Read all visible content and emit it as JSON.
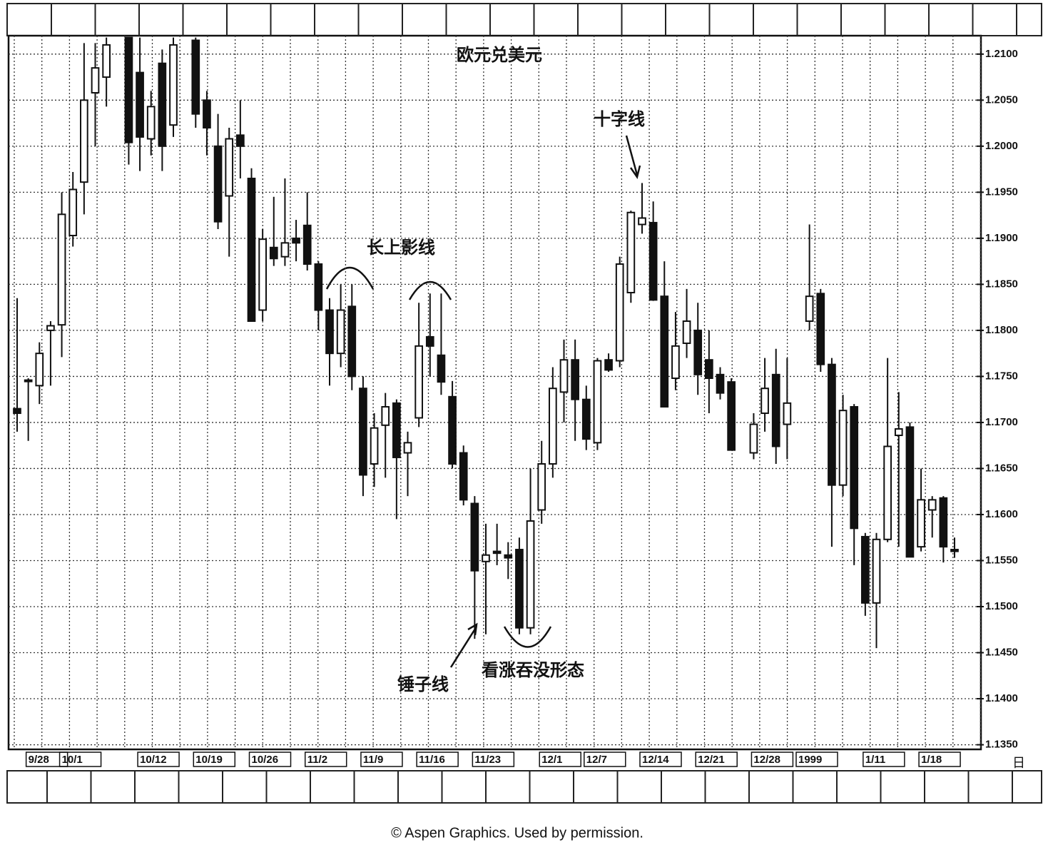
{
  "chart_data": {
    "type": "candlestick",
    "title": "欧元兑美元",
    "categories": [
      null,
      "9/28",
      null,
      null,
      "10/1",
      null,
      null,
      null,
      null,
      null,
      null,
      "10/12",
      null,
      null,
      null,
      null,
      "10/19",
      null,
      null,
      null,
      null,
      "10/26",
      null,
      null,
      null,
      null,
      "11/2",
      null,
      null,
      null,
      null,
      "11/9",
      null,
      null,
      null,
      null,
      "11/16",
      null,
      null,
      null,
      null,
      "11/23",
      null,
      null,
      null,
      null,
      null,
      "12/1",
      null,
      null,
      null,
      "12/7",
      null,
      null,
      null,
      null,
      "12/14",
      null,
      null,
      null,
      null,
      "12/21",
      null,
      null,
      null,
      null,
      "12/28",
      null,
      null,
      null,
      "1999",
      null,
      null,
      null,
      null,
      null,
      "1/11",
      null,
      null,
      null,
      null,
      "1/18",
      null,
      null,
      null
    ],
    "open": [
      1.1715,
      1.1745,
      1.174,
      1.18,
      1.1806,
      1.1903,
      1.1961,
      1.2058,
      1.2075,
      null,
      1.2118,
      1.208,
      1.2008,
      1.209,
      1.2023,
      null,
      1.2115,
      1.205,
      1.2,
      1.1946,
      1.2012,
      1.1965,
      1.1822,
      1.189,
      1.188,
      1.19,
      1.1914,
      1.1872,
      1.1822,
      1.1775,
      1.1826,
      1.1737,
      1.1655,
      1.1697,
      1.1721,
      1.1667,
      1.1705,
      1.1793,
      1.1773,
      1.1728,
      1.1667,
      1.1612,
      1.1549,
      1.156,
      1.1556,
      1.1562,
      1.1477,
      1.1605,
      1.1655,
      1.1733,
      1.1768,
      1.1725,
      1.1678,
      1.1768,
      1.1767,
      1.1841,
      1.1915,
      1.1917,
      1.1837,
      1.1748,
      1.1786,
      1.18,
      1.1768,
      1.1752,
      1.1744,
      null,
      1.1667,
      1.171,
      1.1752,
      1.1698,
      null,
      1.181,
      1.184,
      1.1763,
      1.1632,
      1.1717,
      1.1576,
      1.1504,
      1.1573,
      1.1686,
      1.1695,
      1.1565,
      1.1605,
      1.1618,
      1.1562
    ],
    "high": [
      1.1835,
      1.1748,
      1.1787,
      1.181,
      1.195,
      1.1972,
      1.2112,
      1.2112,
      1.2118,
      null,
      1.2118,
      1.2118,
      1.206,
      1.2105,
      1.2118,
      null,
      1.2118,
      1.206,
      1.2035,
      1.202,
      1.205,
      1.1976,
      1.191,
      1.1945,
      1.1965,
      1.192,
      1.195,
      1.1875,
      1.1835,
      1.185,
      1.185,
      1.175,
      1.171,
      1.1732,
      1.1725,
      1.169,
      1.183,
      1.184,
      1.184,
      1.1745,
      1.1675,
      1.162,
      1.159,
      1.159,
      1.157,
      1.1575,
      1.165,
      1.168,
      1.176,
      1.179,
      1.179,
      1.174,
      1.177,
      1.1775,
      1.188,
      1.193,
      1.196,
      1.194,
      1.1875,
      1.182,
      1.1845,
      1.183,
      1.18,
      1.176,
      1.1748,
      null,
      1.171,
      1.177,
      1.178,
      1.177,
      null,
      1.1915,
      1.1845,
      1.177,
      1.173,
      1.172,
      1.158,
      1.158,
      1.177,
      1.1733,
      1.17,
      1.165,
      1.162,
      1.162,
      1.1575
    ],
    "low": [
      1.169,
      1.168,
      1.172,
      1.174,
      1.1771,
      1.1891,
      1.1926,
      1.2,
      1.2043,
      null,
      1.198,
      1.1973,
      1.199,
      1.1973,
      1.201,
      null,
      1.202,
      1.199,
      1.191,
      1.188,
      1.1965,
      1.181,
      1.181,
      1.187,
      1.187,
      1.1875,
      1.1865,
      1.18,
      1.174,
      1.176,
      1.1735,
      1.162,
      1.163,
      1.164,
      1.1595,
      1.162,
      1.1695,
      1.175,
      1.173,
      1.165,
      1.161,
      1.1465,
      1.147,
      1.1545,
      1.153,
      1.147,
      1.147,
      1.159,
      1.164,
      1.17,
      1.168,
      1.167,
      1.167,
      1.1755,
      1.176,
      1.183,
      1.1905,
      1.1832,
      1.1717,
      1.1735,
      1.177,
      1.173,
      1.171,
      1.1725,
      1.167,
      null,
      1.166,
      1.169,
      1.1655,
      1.166,
      null,
      1.18,
      1.1755,
      1.1565,
      1.162,
      1.1545,
      1.149,
      1.1455,
      1.157,
      1.1565,
      1.1554,
      1.156,
      1.1575,
      1.1548,
      1.1553
    ],
    "close": [
      1.171,
      1.1746,
      1.1775,
      1.1805,
      1.1926,
      1.1953,
      1.205,
      1.2085,
      1.211,
      null,
      1.2004,
      1.201,
      1.2043,
      1.2,
      1.211,
      null,
      1.2035,
      1.202,
      1.1918,
      1.2008,
      1.2,
      1.181,
      1.1899,
      1.1878,
      1.1895,
      1.1895,
      1.1872,
      1.1822,
      1.1775,
      1.1822,
      1.175,
      1.1643,
      1.1694,
      1.1717,
      1.1662,
      1.1678,
      1.1783,
      1.1783,
      1.1744,
      1.1655,
      1.1616,
      1.1539,
      1.1556,
      1.1558,
      1.1553,
      1.1477,
      1.1593,
      1.1655,
      1.1737,
      1.1768,
      1.1725,
      1.1682,
      1.1767,
      1.1757,
      1.1872,
      1.1928,
      1.1922,
      1.1833,
      1.1717,
      1.1783,
      1.181,
      1.1752,
      1.1748,
      1.1732,
      1.167,
      null,
      1.1698,
      1.1737,
      1.1674,
      1.1721,
      null,
      1.1837,
      1.1763,
      1.1632,
      1.1713,
      1.1585,
      1.1504,
      1.1573,
      1.1674,
      1.1693,
      1.1554,
      1.1616,
      1.1616,
      1.1565,
      1.156
    ],
    "up_color": "#ffffff",
    "down_color": "#111111",
    "ylim": [
      1.1345,
      1.212
    ],
    "yticks": [
      {
        "value": 1.135,
        "label": "1.1350"
      },
      {
        "value": 1.14,
        "label": "1.1400"
      },
      {
        "value": 1.145,
        "label": "1.1450"
      },
      {
        "value": 1.15,
        "label": "1.1500"
      },
      {
        "value": 1.155,
        "label": "1.1550"
      },
      {
        "value": 1.16,
        "label": "1.1600"
      },
      {
        "value": 1.165,
        "label": "1.1650"
      },
      {
        "value": 1.17,
        "label": "1.1700"
      },
      {
        "value": 1.175,
        "label": "1.1750"
      },
      {
        "value": 1.18,
        "label": "1.1800"
      },
      {
        "value": 1.185,
        "label": "1.1850"
      },
      {
        "value": 1.19,
        "label": "1.1900"
      },
      {
        "value": 1.195,
        "label": "1.1950"
      },
      {
        "value": 1.2,
        "label": "1.2000"
      },
      {
        "value": 1.205,
        "label": "1.2050"
      },
      {
        "value": 1.21,
        "label": "1.2100"
      }
    ],
    "grid": true,
    "xlabel": "日",
    "annotations": [
      "长上影线",
      "十字线",
      "锤子线",
      "看涨吞没形态"
    ],
    "credit": "© Aspen Graphics. Used by permission."
  }
}
